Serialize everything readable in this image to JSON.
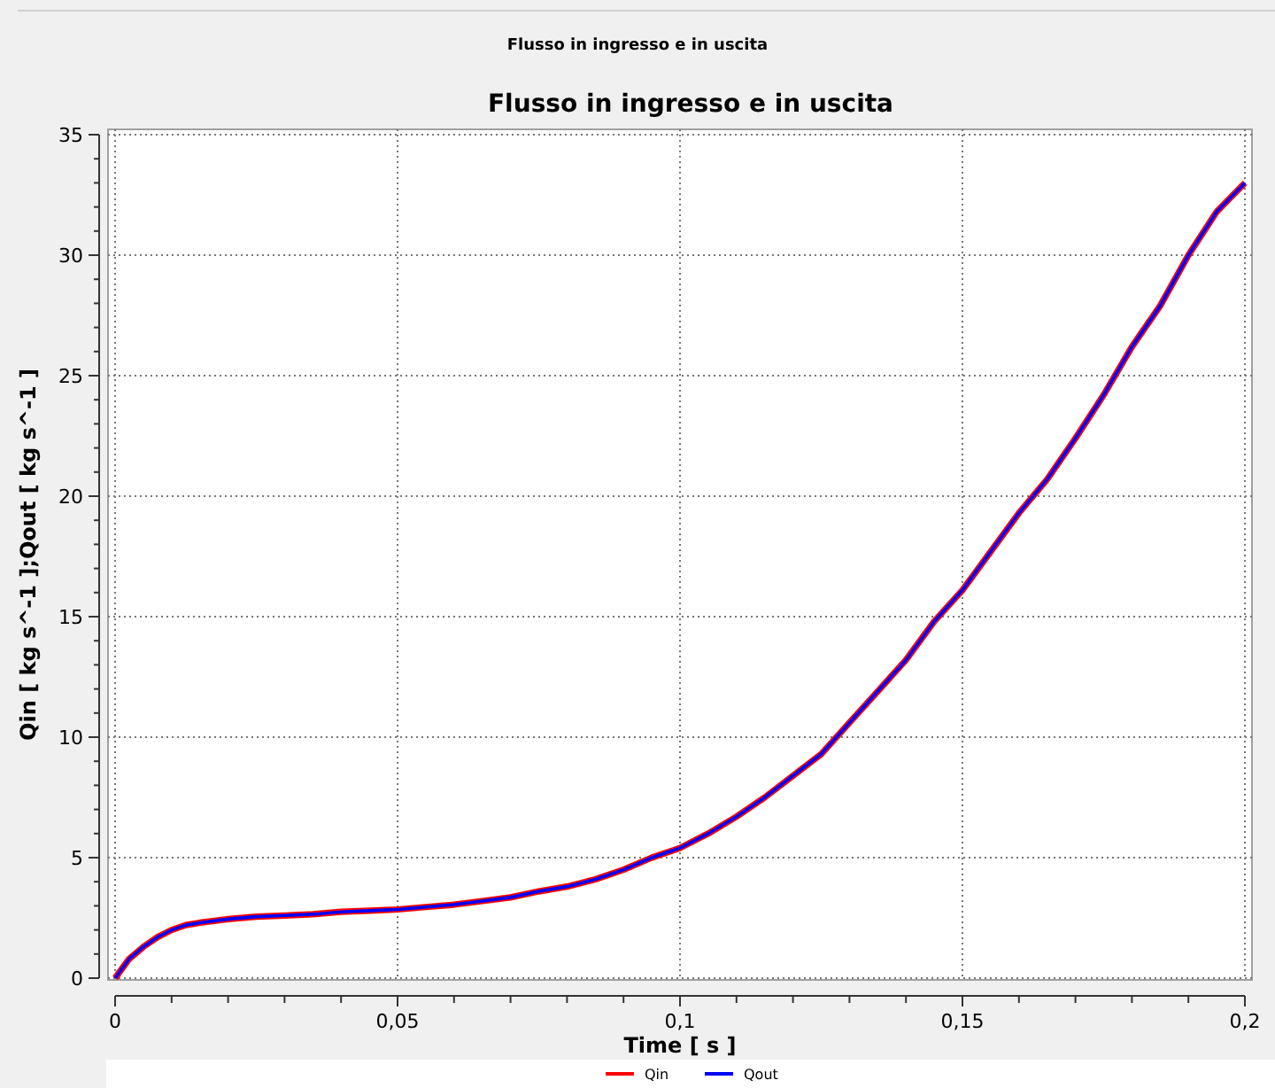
{
  "chart_data": {
    "type": "line",
    "subtitle": "Flusso in ingresso e in uscita",
    "title": "Flusso in ingresso e in uscita",
    "xlabel": "Time [ s ]",
    "ylabel": "Qin [ kg s^-1 ];Qout [ kg s^-1 ]",
    "x": [
      0,
      0.0025,
      0.005,
      0.0075,
      0.01,
      0.0125,
      0.015,
      0.02,
      0.025,
      0.03,
      0.035,
      0.04,
      0.045,
      0.05,
      0.055,
      0.06,
      0.065,
      0.07,
      0.075,
      0.08,
      0.085,
      0.09,
      0.095,
      0.1,
      0.105,
      0.11,
      0.115,
      0.12,
      0.125,
      0.13,
      0.135,
      0.14,
      0.145,
      0.15,
      0.155,
      0.16,
      0.165,
      0.17,
      0.175,
      0.18,
      0.185,
      0.19,
      0.195,
      0.2
    ],
    "series": [
      {
        "name": "Qin",
        "color": "#ff0000",
        "values": [
          0,
          0.8,
          1.3,
          1.7,
          2.0,
          2.2,
          2.3,
          2.45,
          2.55,
          2.6,
          2.65,
          2.75,
          2.8,
          2.85,
          2.95,
          3.05,
          3.2,
          3.35,
          3.6,
          3.8,
          4.1,
          4.5,
          5.0,
          5.4,
          6.0,
          6.7,
          7.5,
          8.4,
          9.3,
          10.6,
          11.9,
          13.2,
          14.8,
          16.1,
          17.7,
          19.3,
          20.7,
          22.4,
          24.2,
          26.2,
          27.9,
          30.0,
          31.8,
          33.0
        ]
      },
      {
        "name": "Qout",
        "color": "#0000ff",
        "values": [
          0,
          0.8,
          1.3,
          1.7,
          2.0,
          2.2,
          2.3,
          2.45,
          2.55,
          2.6,
          2.65,
          2.75,
          2.8,
          2.85,
          2.95,
          3.05,
          3.2,
          3.35,
          3.6,
          3.8,
          4.1,
          4.5,
          5.0,
          5.4,
          6.0,
          6.7,
          7.5,
          8.4,
          9.3,
          10.6,
          11.9,
          13.2,
          14.8,
          16.1,
          17.7,
          19.3,
          20.7,
          22.4,
          24.2,
          26.2,
          27.9,
          30.0,
          31.8,
          33.0
        ]
      }
    ],
    "xlim": [
      0,
      0.2
    ],
    "xticks": [
      {
        "value": 0,
        "label": "0"
      },
      {
        "value": 0.01,
        "label": null
      },
      {
        "value": 0.02,
        "label": null
      },
      {
        "value": 0.03,
        "label": null
      },
      {
        "value": 0.04,
        "label": null
      },
      {
        "value": 0.05,
        "label": "0,05"
      },
      {
        "value": 0.06,
        "label": null
      },
      {
        "value": 0.07,
        "label": null
      },
      {
        "value": 0.08,
        "label": null
      },
      {
        "value": 0.09,
        "label": null
      },
      {
        "value": 0.1,
        "label": "0,1"
      },
      {
        "value": 0.11,
        "label": null
      },
      {
        "value": 0.12,
        "label": null
      },
      {
        "value": 0.13,
        "label": null
      },
      {
        "value": 0.14,
        "label": null
      },
      {
        "value": 0.15,
        "label": "0,15"
      },
      {
        "value": 0.16,
        "label": null
      },
      {
        "value": 0.17,
        "label": null
      },
      {
        "value": 0.18,
        "label": null
      },
      {
        "value": 0.19,
        "label": null
      },
      {
        "value": 0.2,
        "label": "0,2"
      }
    ],
    "ylim": [
      0,
      35
    ],
    "yticks": [
      0,
      5,
      10,
      15,
      20,
      25,
      30,
      35
    ],
    "grid": true,
    "legend": "bottom",
    "line_style": "solid",
    "marker": "none"
  }
}
